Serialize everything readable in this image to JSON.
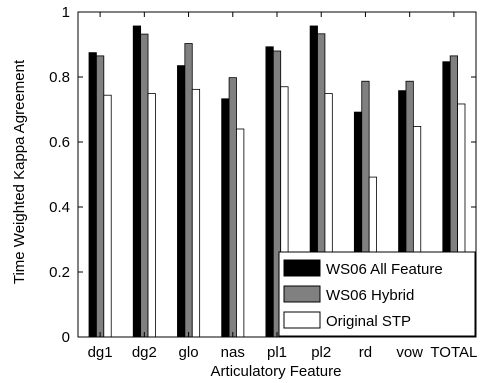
{
  "chart_data": {
    "type": "bar",
    "title": "",
    "xlabel": "Articulatory Feature",
    "ylabel": "Time Weighted Kappa Agreement",
    "ylim": [
      0,
      1
    ],
    "yticks": [
      "0",
      "0.2",
      "0.4",
      "0.6",
      "0.8",
      "1"
    ],
    "ytick_values": [
      0,
      0.2,
      0.4,
      0.6,
      0.8,
      1
    ],
    "grid": false,
    "legend_position": "bottom-right",
    "categories": [
      "dg1",
      "dg2",
      "glo",
      "nas",
      "pl1",
      "pl2",
      "rd",
      "vow",
      "TOTAL"
    ],
    "series": [
      {
        "name": "WS06 All Feature",
        "color": "#000000",
        "values": [
          0.875,
          0.957,
          0.835,
          0.733,
          0.893,
          0.957,
          0.692,
          0.758,
          0.847
        ]
      },
      {
        "name": "WS06 Hybrid",
        "color": "#808080",
        "values": [
          0.865,
          0.932,
          0.903,
          0.798,
          0.88,
          0.933,
          0.787,
          0.787,
          0.865
        ]
      },
      {
        "name": "Original STP",
        "color": "#ffffff",
        "values": [
          0.744,
          0.749,
          0.762,
          0.64,
          0.77,
          0.749,
          0.492,
          0.648,
          0.717
        ]
      }
    ]
  }
}
